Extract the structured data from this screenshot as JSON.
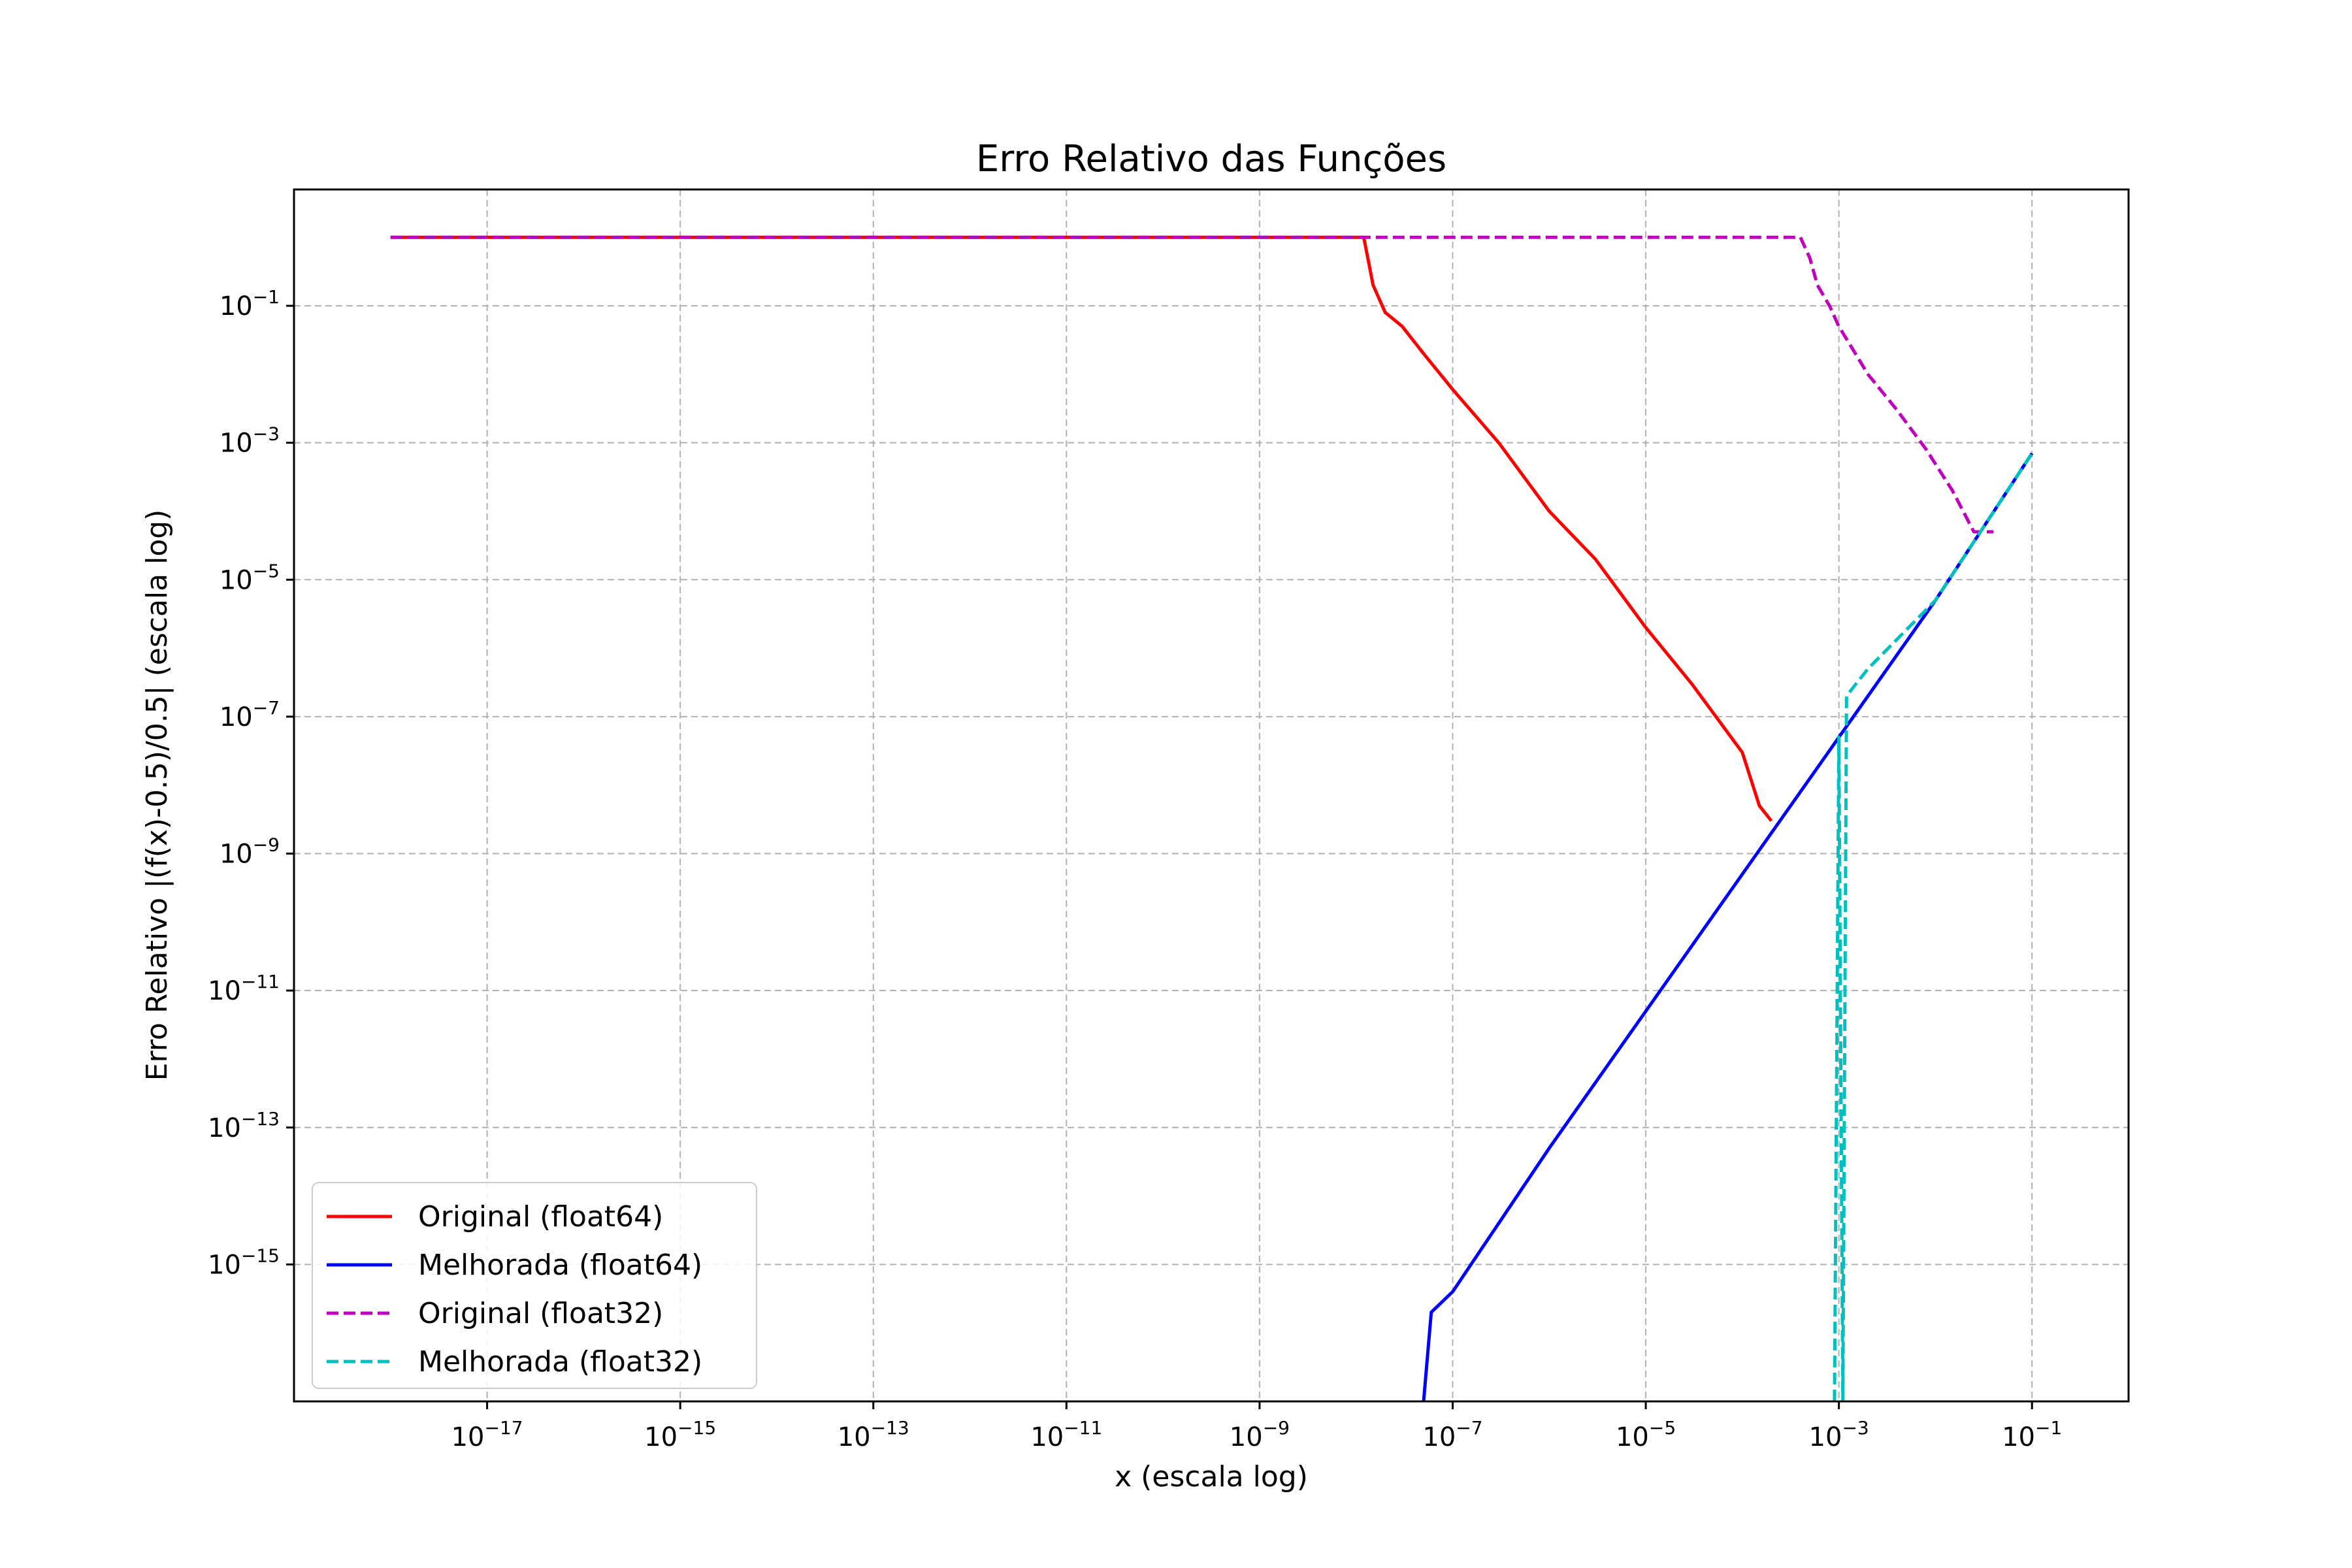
{
  "chart_data": {
    "type": "line",
    "title": "Erro Relativo das Funções",
    "xlabel": "x (escala log)",
    "ylabel": "Erro Relativo |(f(x)-0.5)/0.5| (escala log)",
    "xscale": "log",
    "yscale": "log",
    "xlim": [
      1e-19,
      1
    ],
    "ylim": [
      1e-17,
      5
    ],
    "grid": true,
    "legend_position": "lower-left",
    "x_ticks": [
      {
        "base": "10",
        "exp": "−17",
        "value": 1e-17
      },
      {
        "base": "10",
        "exp": "−15",
        "value": 1e-15
      },
      {
        "base": "10",
        "exp": "−13",
        "value": 1e-13
      },
      {
        "base": "10",
        "exp": "−11",
        "value": 1e-11
      },
      {
        "base": "10",
        "exp": "−9",
        "value": 1e-09
      },
      {
        "base": "10",
        "exp": "−7",
        "value": 1e-07
      },
      {
        "base": "10",
        "exp": "−5",
        "value": 1e-05
      },
      {
        "base": "10",
        "exp": "−3",
        "value": 0.001
      },
      {
        "base": "10",
        "exp": "−1",
        "value": 0.1
      }
    ],
    "y_ticks": [
      {
        "base": "10",
        "exp": "−1",
        "value": 0.1
      },
      {
        "base": "10",
        "exp": "−3",
        "value": 0.001
      },
      {
        "base": "10",
        "exp": "−5",
        "value": 1e-05
      },
      {
        "base": "10",
        "exp": "−7",
        "value": 1e-07
      },
      {
        "base": "10",
        "exp": "−9",
        "value": 1e-09
      },
      {
        "base": "10",
        "exp": "−11",
        "value": 1e-11
      },
      {
        "base": "10",
        "exp": "−13",
        "value": 1e-13
      },
      {
        "base": "10",
        "exp": "−15",
        "value": 1e-15
      }
    ],
    "series": [
      {
        "name": "Original (float64)",
        "color": "#ff0000",
        "dash": "solid",
        "x": [
          1e-18,
          1e-13,
          1e-09,
          1.2e-08,
          1.5e-08,
          2e-08,
          3e-08,
          5e-08,
          1e-07,
          3e-07,
          1e-06,
          3e-06,
          1e-05,
          3e-05,
          0.0001,
          0.00015,
          0.0002
        ],
        "y": [
          1,
          1,
          1,
          1,
          0.2,
          0.08,
          0.05,
          0.02,
          0.006,
          0.001,
          0.0001,
          2e-05,
          2e-06,
          3e-07,
          3e-08,
          5e-09,
          3e-09
        ]
      },
      {
        "name": "Melhorada (float64)",
        "color": "#0000ff",
        "dash": "solid",
        "x": [
          5e-08,
          6e-08,
          1e-07,
          3e-07,
          1e-06,
          1e-05,
          0.0001,
          0.001,
          0.01,
          0.1
        ],
        "y": [
          1e-17,
          2e-16,
          4e-16,
          4e-15,
          5e-14,
          5e-12,
          5e-10,
          5e-08,
          5e-06,
          0.0007
        ]
      },
      {
        "name": "Original (float32)",
        "color": "#bf00bf",
        "dash": "dashed",
        "x": [
          1e-18,
          1e-09,
          0.0004,
          0.0005,
          0.0006,
          0.0008,
          0.001,
          0.002,
          0.004,
          0.008,
          0.015,
          0.025,
          0.04
        ],
        "y": [
          1,
          1,
          1,
          0.5,
          0.2,
          0.1,
          0.05,
          0.01,
          0.003,
          0.0008,
          0.0002,
          5e-05,
          5e-05
        ]
      },
      {
        "name": "Melhorada (float32)",
        "color": "#00bfbf",
        "dash": "dashed",
        "x": [
          0.0009,
          0.001,
          0.0011,
          0.0012,
          0.0015,
          0.002,
          0.01,
          0.1
        ],
        "y": [
          1e-17,
          5e-08,
          1e-17,
          2e-07,
          3e-07,
          5e-07,
          5e-06,
          0.0007
        ]
      }
    ]
  }
}
